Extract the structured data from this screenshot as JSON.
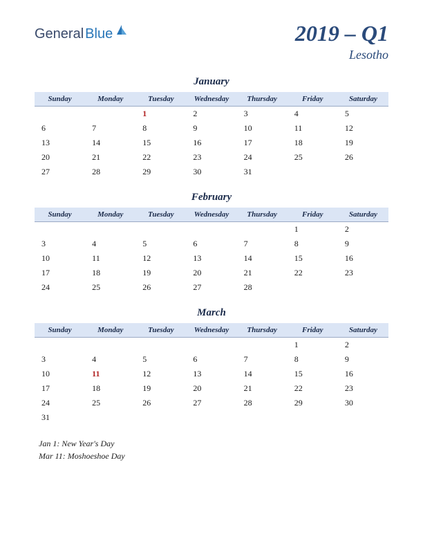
{
  "logo": {
    "part1": "General",
    "part2": "Blue"
  },
  "title": {
    "main": "2019 – Q1",
    "sub": "Lesotho"
  },
  "dayHeaders": [
    "Sunday",
    "Monday",
    "Tuesday",
    "Wednesday",
    "Thursday",
    "Friday",
    "Saturday"
  ],
  "months": [
    {
      "name": "January",
      "weeks": [
        [
          "",
          "",
          "1",
          "2",
          "3",
          "4",
          "5"
        ],
        [
          "6",
          "7",
          "8",
          "9",
          "10",
          "11",
          "12"
        ],
        [
          "13",
          "14",
          "15",
          "16",
          "17",
          "18",
          "19"
        ],
        [
          "20",
          "21",
          "22",
          "23",
          "24",
          "25",
          "26"
        ],
        [
          "27",
          "28",
          "29",
          "30",
          "31",
          "",
          ""
        ]
      ],
      "holidays": [
        "1"
      ]
    },
    {
      "name": "February",
      "weeks": [
        [
          "",
          "",
          "",
          "",
          "",
          "1",
          "2"
        ],
        [
          "3",
          "4",
          "5",
          "6",
          "7",
          "8",
          "9"
        ],
        [
          "10",
          "11",
          "12",
          "13",
          "14",
          "15",
          "16"
        ],
        [
          "17",
          "18",
          "19",
          "20",
          "21",
          "22",
          "23"
        ],
        [
          "24",
          "25",
          "26",
          "27",
          "28",
          "",
          ""
        ]
      ],
      "holidays": []
    },
    {
      "name": "March",
      "weeks": [
        [
          "",
          "",
          "",
          "",
          "",
          "1",
          "2"
        ],
        [
          "3",
          "4",
          "5",
          "6",
          "7",
          "8",
          "9"
        ],
        [
          "10",
          "11",
          "12",
          "13",
          "14",
          "15",
          "16"
        ],
        [
          "17",
          "18",
          "19",
          "20",
          "21",
          "22",
          "23"
        ],
        [
          "24",
          "25",
          "26",
          "27",
          "28",
          "29",
          "30"
        ],
        [
          "31",
          "",
          "",
          "",
          "",
          "",
          ""
        ]
      ],
      "holidays": [
        "11"
      ]
    }
  ],
  "holidayNotes": [
    "Jan 1: New Year's Day",
    "Mar 11: Moshoeshoe Day"
  ],
  "colors": {
    "headerBg": "#dbe5f5",
    "headerBorder": "#9aaac5",
    "titleColor": "#2a4a7a",
    "holidayColor": "#b02020",
    "textColor": "#1a1a1a"
  }
}
